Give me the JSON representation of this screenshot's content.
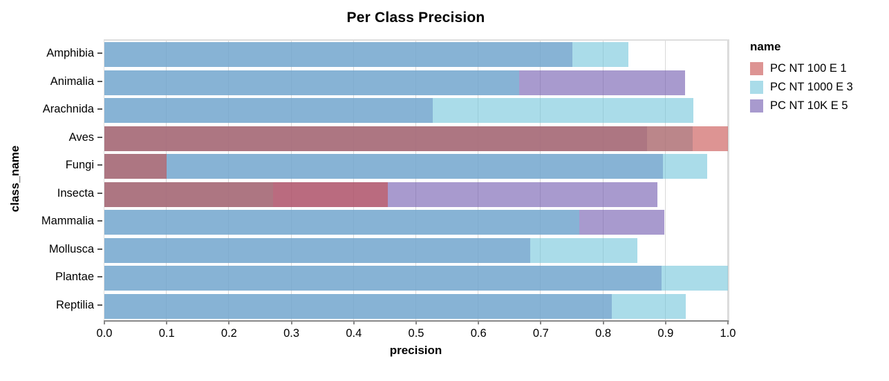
{
  "chart_data": {
    "type": "bar",
    "orientation": "horizontal",
    "title": "Per Class Precision",
    "xlabel": "precision",
    "ylabel": "class_name",
    "xlim": [
      0,
      1.0
    ],
    "xticks": [
      0,
      0.1,
      0.2,
      0.3,
      0.4,
      0.5,
      0.6,
      0.7,
      0.8,
      0.9,
      1.0
    ],
    "grid": true,
    "categories": [
      "Amphibia",
      "Animalia",
      "Arachnida",
      "Aves",
      "Fungi",
      "Insecta",
      "Mammalia",
      "Mollusca",
      "Plantae",
      "Reptilia"
    ],
    "legend": {
      "title": "name",
      "position": "top-right"
    },
    "bar_opacity": 0.6,
    "draw_order": [
      2,
      1,
      0
    ],
    "series": [
      {
        "name": "PC NT 100 E 1",
        "color": "#C64D4B",
        "swatch": "#DD9493",
        "values": [
          null,
          null,
          null,
          1.0,
          0.1,
          0.455,
          null,
          null,
          null,
          null
        ]
      },
      {
        "name": "PC NT 1000 E 3",
        "color": "#71C5DA",
        "swatch": "#AADCE9",
        "values": [
          0.84,
          0.665,
          0.945,
          0.943,
          0.967,
          0.271,
          0.762,
          0.855,
          1.0,
          0.932
        ]
      },
      {
        "name": "PC NT 10K E 5",
        "color": "#6E57AD",
        "swatch": "#A89ACE",
        "values": [
          0.751,
          0.931,
          0.527,
          0.87,
          0.896,
          0.887,
          0.898,
          0.683,
          0.894,
          0.814
        ]
      }
    ],
    "blend_colors": {
      "blue_purple_overlap": "#87B4D5",
      "all_three_overlap": "#AD7682",
      "red_over_blue": "#BB868A",
      "red_over_purple": "#BA6C7F"
    },
    "axis_colors": {
      "gridline": "#d8d8d8",
      "frame": "#dddddd",
      "x_axis_line": "#888888",
      "x_tick": "#888888",
      "y_tick": "#555555",
      "text": "#000000"
    }
  }
}
